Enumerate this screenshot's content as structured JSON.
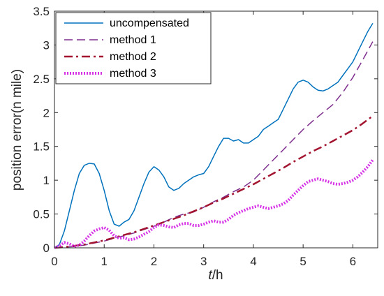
{
  "chart_data": {
    "type": "line",
    "xlabel_var": "t",
    "xlabel_unit": "/h",
    "ylabel": "position error(n mile)",
    "xlim": [
      0,
      6.5
    ],
    "ylim": [
      0,
      3.5
    ],
    "xticks": [
      "0",
      "1",
      "2",
      "3",
      "4",
      "5",
      "6"
    ],
    "yticks": [
      "0",
      "0.5",
      "1",
      "1.5",
      "2",
      "2.5",
      "3",
      "3.5"
    ],
    "legend_position": "top-left",
    "grid": false,
    "series": [
      {
        "name": "uncompensated",
        "color": "#0072BD",
        "style": "solid",
        "x": [
          0,
          0.1,
          0.2,
          0.3,
          0.4,
          0.5,
          0.6,
          0.7,
          0.8,
          0.9,
          1.0,
          1.1,
          1.2,
          1.3,
          1.4,
          1.5,
          1.6,
          1.7,
          1.8,
          1.9,
          2.0,
          2.1,
          2.2,
          2.3,
          2.4,
          2.5,
          2.6,
          2.7,
          2.8,
          2.9,
          3.0,
          3.1,
          3.2,
          3.3,
          3.4,
          3.5,
          3.6,
          3.7,
          3.8,
          3.9,
          4.0,
          4.1,
          4.2,
          4.3,
          4.4,
          4.5,
          4.6,
          4.7,
          4.8,
          4.9,
          5.0,
          5.1,
          5.2,
          5.3,
          5.4,
          5.5,
          5.6,
          5.7,
          5.8,
          5.9,
          6.0,
          6.1,
          6.2,
          6.3,
          6.4
        ],
        "y": [
          0,
          0.05,
          0.25,
          0.55,
          0.85,
          1.1,
          1.22,
          1.25,
          1.24,
          1.1,
          0.85,
          0.55,
          0.35,
          0.32,
          0.38,
          0.42,
          0.55,
          0.75,
          0.95,
          1.12,
          1.2,
          1.15,
          1.05,
          0.9,
          0.85,
          0.88,
          0.95,
          1.0,
          1.05,
          1.08,
          1.1,
          1.2,
          1.35,
          1.5,
          1.62,
          1.62,
          1.58,
          1.6,
          1.55,
          1.55,
          1.6,
          1.65,
          1.75,
          1.8,
          1.85,
          1.9,
          2.05,
          2.2,
          2.35,
          2.45,
          2.48,
          2.45,
          2.38,
          2.33,
          2.32,
          2.35,
          2.4,
          2.45,
          2.55,
          2.65,
          2.75,
          2.9,
          3.05,
          3.2,
          3.32
        ]
      },
      {
        "name": "method 1",
        "color": "#7E2F8E",
        "style": "dashed",
        "x": [
          0,
          0.2,
          0.4,
          0.6,
          0.8,
          1.0,
          1.2,
          1.4,
          1.6,
          1.8,
          2.0,
          2.2,
          2.4,
          2.6,
          2.8,
          3.0,
          3.2,
          3.4,
          3.6,
          3.8,
          4.0,
          4.2,
          4.4,
          4.6,
          4.8,
          5.0,
          5.2,
          5.4,
          5.6,
          5.8,
          6.0,
          6.2,
          6.4
        ],
        "y": [
          0,
          0.01,
          0.02,
          0.04,
          0.07,
          0.1,
          0.14,
          0.18,
          0.22,
          0.27,
          0.32,
          0.38,
          0.45,
          0.5,
          0.53,
          0.6,
          0.68,
          0.75,
          0.83,
          0.9,
          1.0,
          1.15,
          1.3,
          1.45,
          1.6,
          1.75,
          1.88,
          2.0,
          2.12,
          2.3,
          2.52,
          2.78,
          3.05
        ]
      },
      {
        "name": "method 2",
        "color": "#A2142F",
        "style": "dashdot",
        "x": [
          0,
          0.2,
          0.4,
          0.6,
          0.8,
          1.0,
          1.2,
          1.4,
          1.6,
          1.8,
          2.0,
          2.2,
          2.4,
          2.6,
          2.8,
          3.0,
          3.2,
          3.4,
          3.6,
          3.8,
          4.0,
          4.2,
          4.4,
          4.6,
          4.8,
          5.0,
          5.2,
          5.4,
          5.6,
          5.8,
          6.0,
          6.2,
          6.4
        ],
        "y": [
          0,
          0.01,
          0.03,
          0.05,
          0.08,
          0.11,
          0.15,
          0.19,
          0.23,
          0.28,
          0.33,
          0.38,
          0.43,
          0.48,
          0.54,
          0.6,
          0.67,
          0.73,
          0.8,
          0.87,
          0.94,
          1.02,
          1.1,
          1.18,
          1.27,
          1.35,
          1.43,
          1.5,
          1.58,
          1.66,
          1.74,
          1.84,
          1.95
        ]
      },
      {
        "name": "method 3",
        "color": "#D633E6",
        "style": "dotted",
        "x": [
          0,
          0.1,
          0.2,
          0.3,
          0.4,
          0.5,
          0.6,
          0.7,
          0.8,
          0.9,
          1.0,
          1.1,
          1.2,
          1.3,
          1.4,
          1.5,
          1.6,
          1.7,
          1.8,
          1.9,
          2.0,
          2.1,
          2.2,
          2.3,
          2.4,
          2.5,
          2.6,
          2.7,
          2.8,
          2.9,
          3.0,
          3.1,
          3.2,
          3.3,
          3.4,
          3.5,
          3.6,
          3.7,
          3.8,
          3.9,
          4.0,
          4.1,
          4.2,
          4.3,
          4.4,
          4.5,
          4.6,
          4.7,
          4.8,
          4.9,
          5.0,
          5.1,
          5.2,
          5.3,
          5.4,
          5.5,
          5.6,
          5.7,
          5.8,
          5.9,
          6.0,
          6.1,
          6.2,
          6.3,
          6.4
        ],
        "y": [
          0,
          0.03,
          0.08,
          0.06,
          0.02,
          0.04,
          0.1,
          0.18,
          0.25,
          0.28,
          0.3,
          0.26,
          0.18,
          0.14,
          0.15,
          0.12,
          0.13,
          0.16,
          0.2,
          0.24,
          0.3,
          0.34,
          0.33,
          0.31,
          0.3,
          0.34,
          0.36,
          0.36,
          0.33,
          0.33,
          0.35,
          0.38,
          0.4,
          0.38,
          0.38,
          0.42,
          0.48,
          0.52,
          0.55,
          0.58,
          0.6,
          0.62,
          0.6,
          0.58,
          0.6,
          0.62,
          0.65,
          0.7,
          0.78,
          0.85,
          0.92,
          0.98,
          1.0,
          1.02,
          1.0,
          0.98,
          0.95,
          0.94,
          0.95,
          0.97,
          1.0,
          1.05,
          1.12,
          1.2,
          1.3
        ]
      }
    ]
  }
}
